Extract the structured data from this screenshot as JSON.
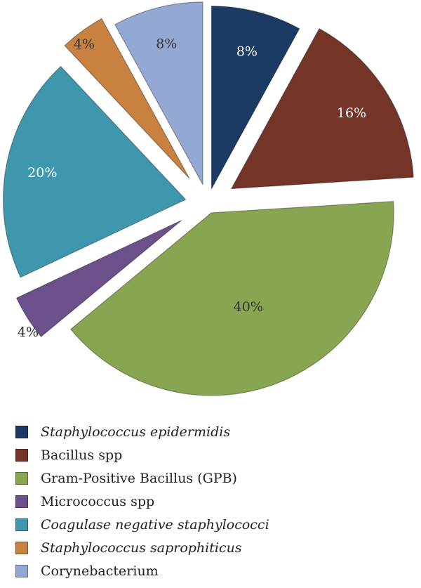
{
  "chart_data": {
    "type": "pie",
    "slices": [
      {
        "name": "Staphylococcus epidermidis",
        "value": 8,
        "label": "8%",
        "color": "#1b3a64",
        "italic": true,
        "label_color": "#ffffff"
      },
      {
        "name": "Bacillus spp",
        "value": 16,
        "label": "16%",
        "color": "#743528",
        "italic": false,
        "label_color": "#ffffff"
      },
      {
        "name": "Gram-Positive Bacillus (GPB)",
        "value": 40,
        "label": "40%",
        "color": "#88a552",
        "italic": false,
        "label_color": "#333333"
      },
      {
        "name": "Micrococcus spp",
        "value": 4,
        "label": "4%",
        "color": "#6c508c",
        "italic": false,
        "label_color": "#333333"
      },
      {
        "name": "Coagulase negative staphylococci",
        "value": 20,
        "label": "20%",
        "color": "#3f97ad",
        "italic": true,
        "label_color": "#ffffff"
      },
      {
        "name": "Staphylococcus saprophiticus",
        "value": 4,
        "label": "4%",
        "color": "#c9813f",
        "italic": true,
        "label_color": "#333333"
      },
      {
        "name": "Corynebacterium",
        "value": 8,
        "label": "8%",
        "color": "#93a9d4",
        "italic": false,
        "label_color": "#333333"
      }
    ],
    "legend_position": "bottom-left",
    "exploded": true
  }
}
